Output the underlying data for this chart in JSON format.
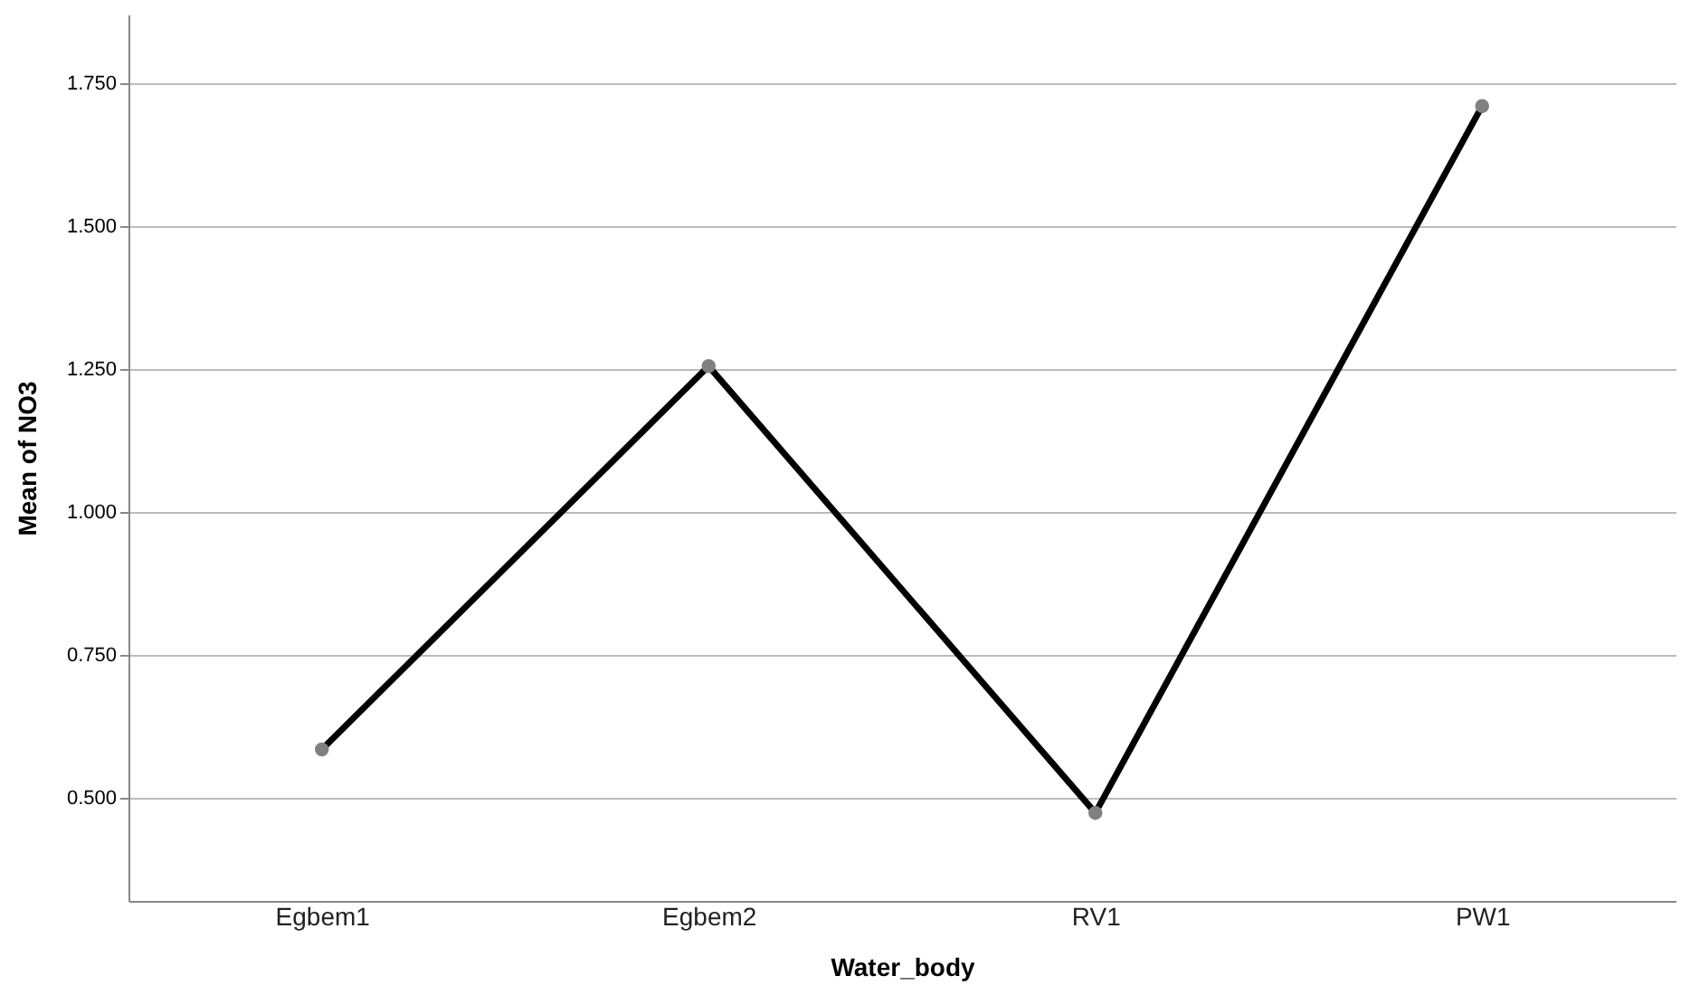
{
  "chart_data": {
    "type": "line",
    "xlabel": "Water_body",
    "ylabel": "Mean of NO3",
    "categories": [
      "Egbem1",
      "Egbem2",
      "RV1",
      "PW1"
    ],
    "series": [
      {
        "color": "#000000",
        "colors": [
          "#808080",
          "#808080",
          "#808080",
          "#808080"
        ],
        "values": [
          0.585,
          1.255,
          0.474,
          1.71
        ]
      }
    ],
    "ylim": [
      0.32,
      1.87
    ],
    "yticks": [
      {
        "value": 0.5,
        "label": "0.500"
      },
      {
        "value": 0.75,
        "label": "0.750"
      },
      {
        "value": 1.0,
        "label": "1.000"
      },
      {
        "value": 1.25,
        "label": "1.250"
      },
      {
        "value": 1.5,
        "label": "1.500"
      },
      {
        "value": 1.75,
        "label": "1.750"
      }
    ],
    "grid": "y",
    "marker": "circle",
    "line_style": "solid"
  }
}
